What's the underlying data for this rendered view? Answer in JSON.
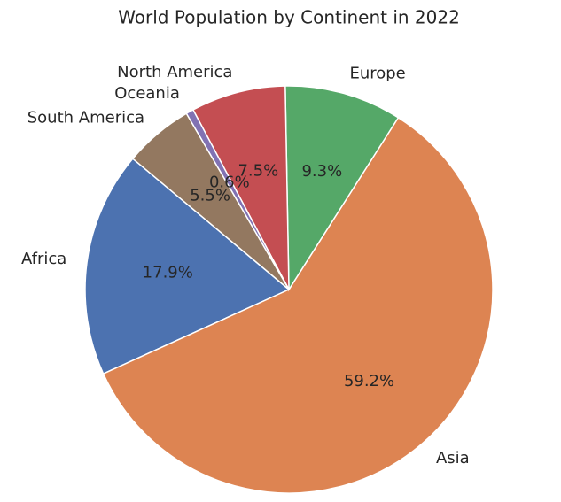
{
  "chart_data": {
    "type": "pie",
    "title": "World Population by Continent in 2022",
    "categories": [
      "Africa",
      "Asia",
      "Europe",
      "North America",
      "Oceania",
      "South America"
    ],
    "values": [
      17.9,
      59.2,
      9.3,
      7.5,
      0.6,
      5.5
    ],
    "value_labels": [
      "17.9%",
      "59.2%",
      "9.3%",
      "7.5%",
      "0.6%",
      "5.5%"
    ],
    "colors": [
      "#4c72b0",
      "#dd8452",
      "#55a868",
      "#c44e52",
      "#8172b3",
      "#937860"
    ]
  }
}
